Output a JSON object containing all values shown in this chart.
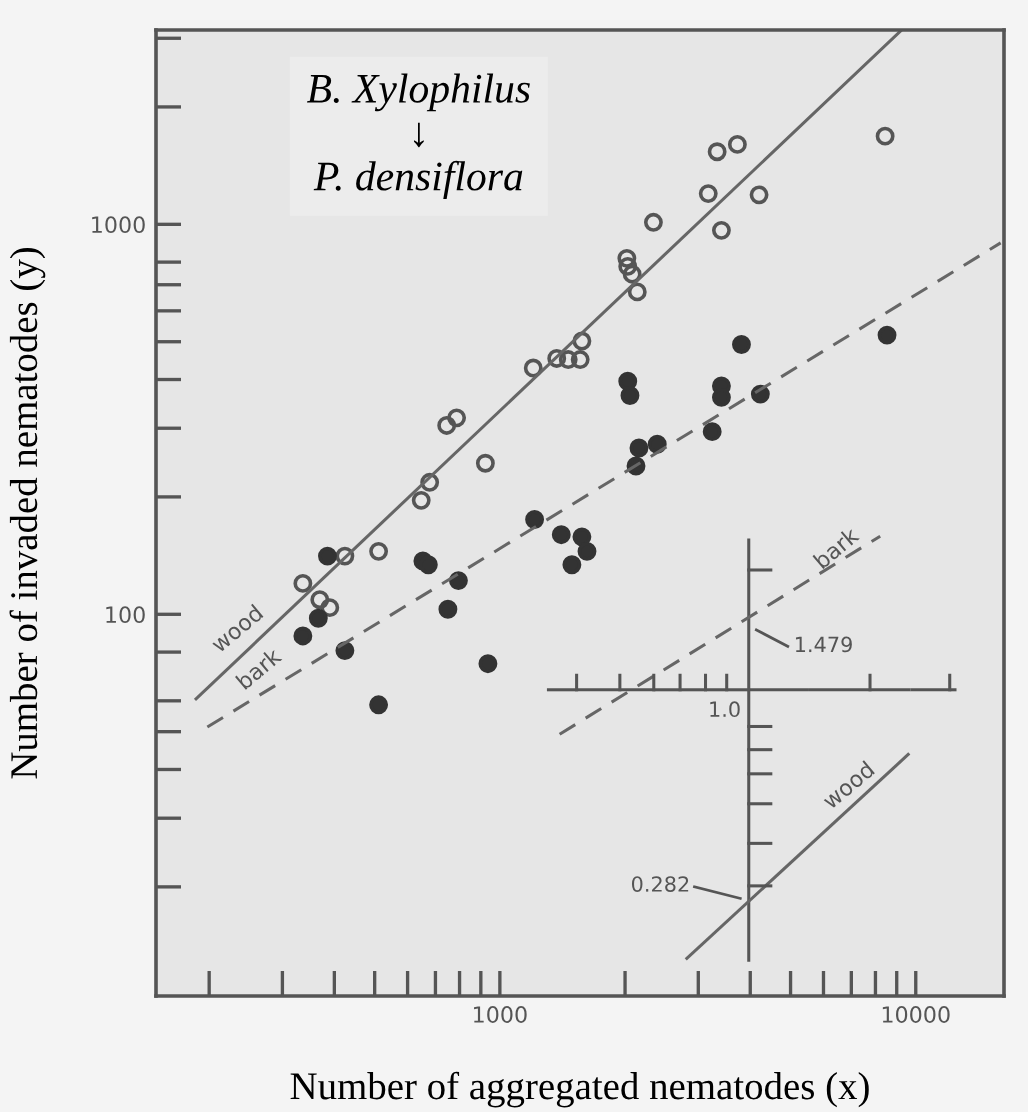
{
  "chart_data": {
    "type": "scatter",
    "xlabel": "Number of aggregated nematodes (x)",
    "ylabel": "Number of invaded nematodes (y)",
    "log": "xy",
    "grid": false,
    "xlim": [
      149,
      16300
    ],
    "ylim": [
      10.5,
      3150
    ],
    "xticks": [
      {
        "value": 200,
        "label": null
      },
      {
        "value": 300,
        "label": null
      },
      {
        "value": 400,
        "label": null
      },
      {
        "value": 500,
        "label": null
      },
      {
        "value": 600,
        "label": null
      },
      {
        "value": 700,
        "label": null
      },
      {
        "value": 800,
        "label": null
      },
      {
        "value": 900,
        "label": null
      },
      1000,
      {
        "value": 2000,
        "label": null
      },
      {
        "value": 3000,
        "label": null
      },
      {
        "value": 4000,
        "label": null
      },
      {
        "value": 5000,
        "label": null
      },
      {
        "value": 6000,
        "label": null
      },
      {
        "value": 7000,
        "label": null
      },
      {
        "value": 8000,
        "label": null
      },
      {
        "value": 9000,
        "label": null
      },
      10000
    ],
    "yticks": [
      {
        "value": 20,
        "label": null
      },
      {
        "value": 30,
        "label": null
      },
      {
        "value": 40,
        "label": null
      },
      {
        "value": 50,
        "label": null
      },
      {
        "value": 60,
        "label": null
      },
      {
        "value": 80,
        "label": null
      },
      100,
      {
        "value": 200,
        "label": null
      },
      {
        "value": 300,
        "label": null
      },
      {
        "value": 400,
        "label": null
      },
      {
        "value": 500,
        "label": null
      },
      {
        "value": 600,
        "label": null
      },
      {
        "value": 700,
        "label": null
      },
      {
        "value": 800,
        "label": null
      },
      1000,
      {
        "value": 2000,
        "label": null
      },
      {
        "value": 3000,
        "label": null
      }
    ],
    "series": [
      {
        "marker": "circle",
        "color": "#555555",
        "x": [
          8440,
          3330,
          3725,
          3170,
          4200,
          3410,
          2340,
          2020,
          2030,
          2080,
          2140,
          1575,
          1560,
          1460,
          1370,
          1203,
          745,
          787,
          923,
          678,
          647,
          511,
          424,
          336,
          369,
          390
        ],
        "values": [
          1683,
          1535,
          1603,
          1199,
          1190,
          965,
          1012,
          818,
          780,
          745,
          671,
          502,
          450,
          450,
          453,
          428,
          305,
          319,
          244,
          218,
          196,
          145,
          141,
          120,
          109,
          104
        ]
      },
      {
        "marker": "circle",
        "color": "#333333",
        "x": [
          8530,
          3810,
          3410,
          3410,
          4230,
          3240,
          2030,
          2055,
          2160,
          2390,
          2125,
          1212,
          1405,
          1575,
          1620,
          1490,
          653,
          673,
          385,
          795,
          366,
          336,
          424,
          750,
          936,
          511
        ],
        "values": [
          520,
          492,
          385,
          360,
          367,
          294,
          396,
          364,
          267,
          273,
          240,
          175,
          160,
          158,
          145,
          134,
          137,
          134,
          141,
          122,
          97.7,
          88,
          80.7,
          103,
          74.7,
          58.6
        ]
      },
      {
        "type": "line",
        "line_style": "solid",
        "color": "#666666",
        "x": [
          186,
          9250
        ],
        "values": [
          60.7,
          3150
        ]
      },
      {
        "type": "line",
        "line_style": "dashed",
        "color": "#666666",
        "x": [
          198,
          16000
        ],
        "values": [
          51.4,
          896
        ]
      }
    ],
    "annotations": [
      "B. Xylophilus\n↓\nP. densiflora",
      "wood",
      "bark",
      "bark",
      "1.479",
      "1.0",
      "wood",
      "0.282"
    ]
  }
}
